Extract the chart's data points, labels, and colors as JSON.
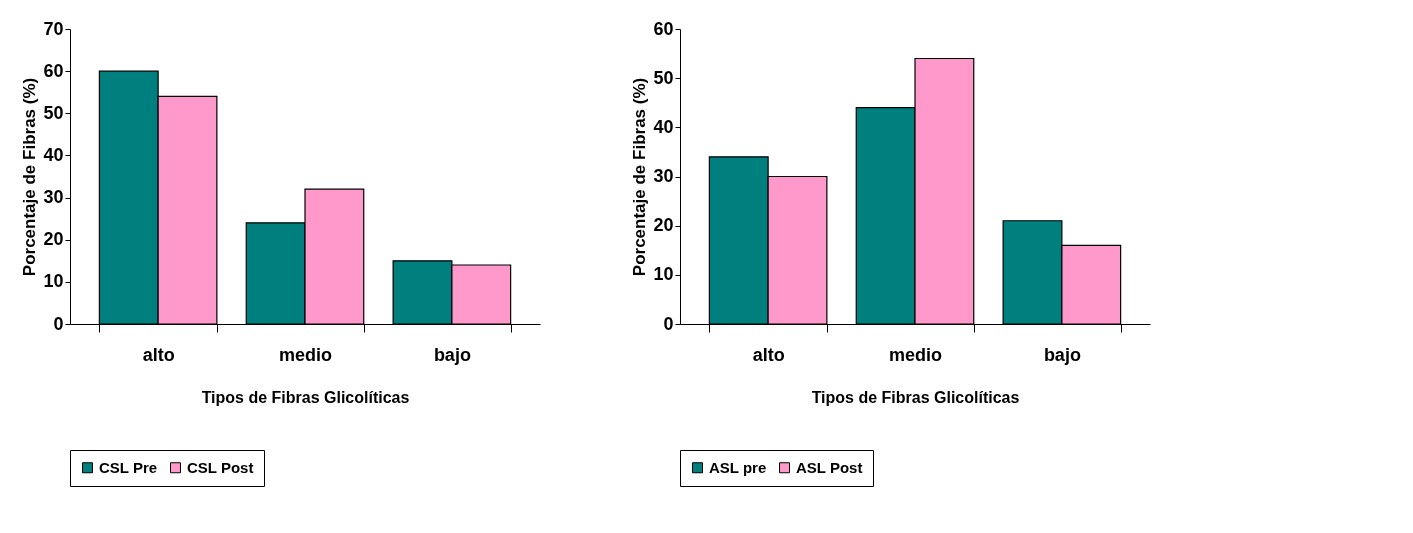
{
  "chart_data": [
    {
      "type": "bar",
      "categories": [
        "alto",
        "medio",
        "bajo"
      ],
      "xlabel": "Tipos de Fibras Glicolíticas",
      "ylabel": "Porcentaje de Fibras (%)",
      "ylim": [
        0,
        70
      ],
      "yticks": [
        0,
        10,
        20,
        30,
        40,
        50,
        60,
        70
      ],
      "grid": false,
      "legend": "bottom",
      "series": [
        {
          "name": "CSL Pre",
          "color": "#007f7f",
          "values": [
            60,
            24,
            15
          ]
        },
        {
          "name": "CSL Post",
          "color": "#ff99cc",
          "values": [
            54,
            32,
            14
          ]
        }
      ]
    },
    {
      "type": "bar",
      "categories": [
        "alto",
        "medio",
        "bajo"
      ],
      "xlabel": "Tipos de Fibras Glicolíticas",
      "ylabel": "Porcentaje de Fibras (%)",
      "ylim": [
        0,
        60
      ],
      "yticks": [
        0,
        10,
        20,
        30,
        40,
        50,
        60
      ],
      "grid": false,
      "legend": "bottom",
      "series": [
        {
          "name": "ASL pre",
          "color": "#007f7f",
          "values": [
            34,
            44,
            21
          ]
        },
        {
          "name": "ASL Post",
          "color": "#ff99cc",
          "values": [
            30,
            54,
            16
          ]
        }
      ]
    }
  ]
}
